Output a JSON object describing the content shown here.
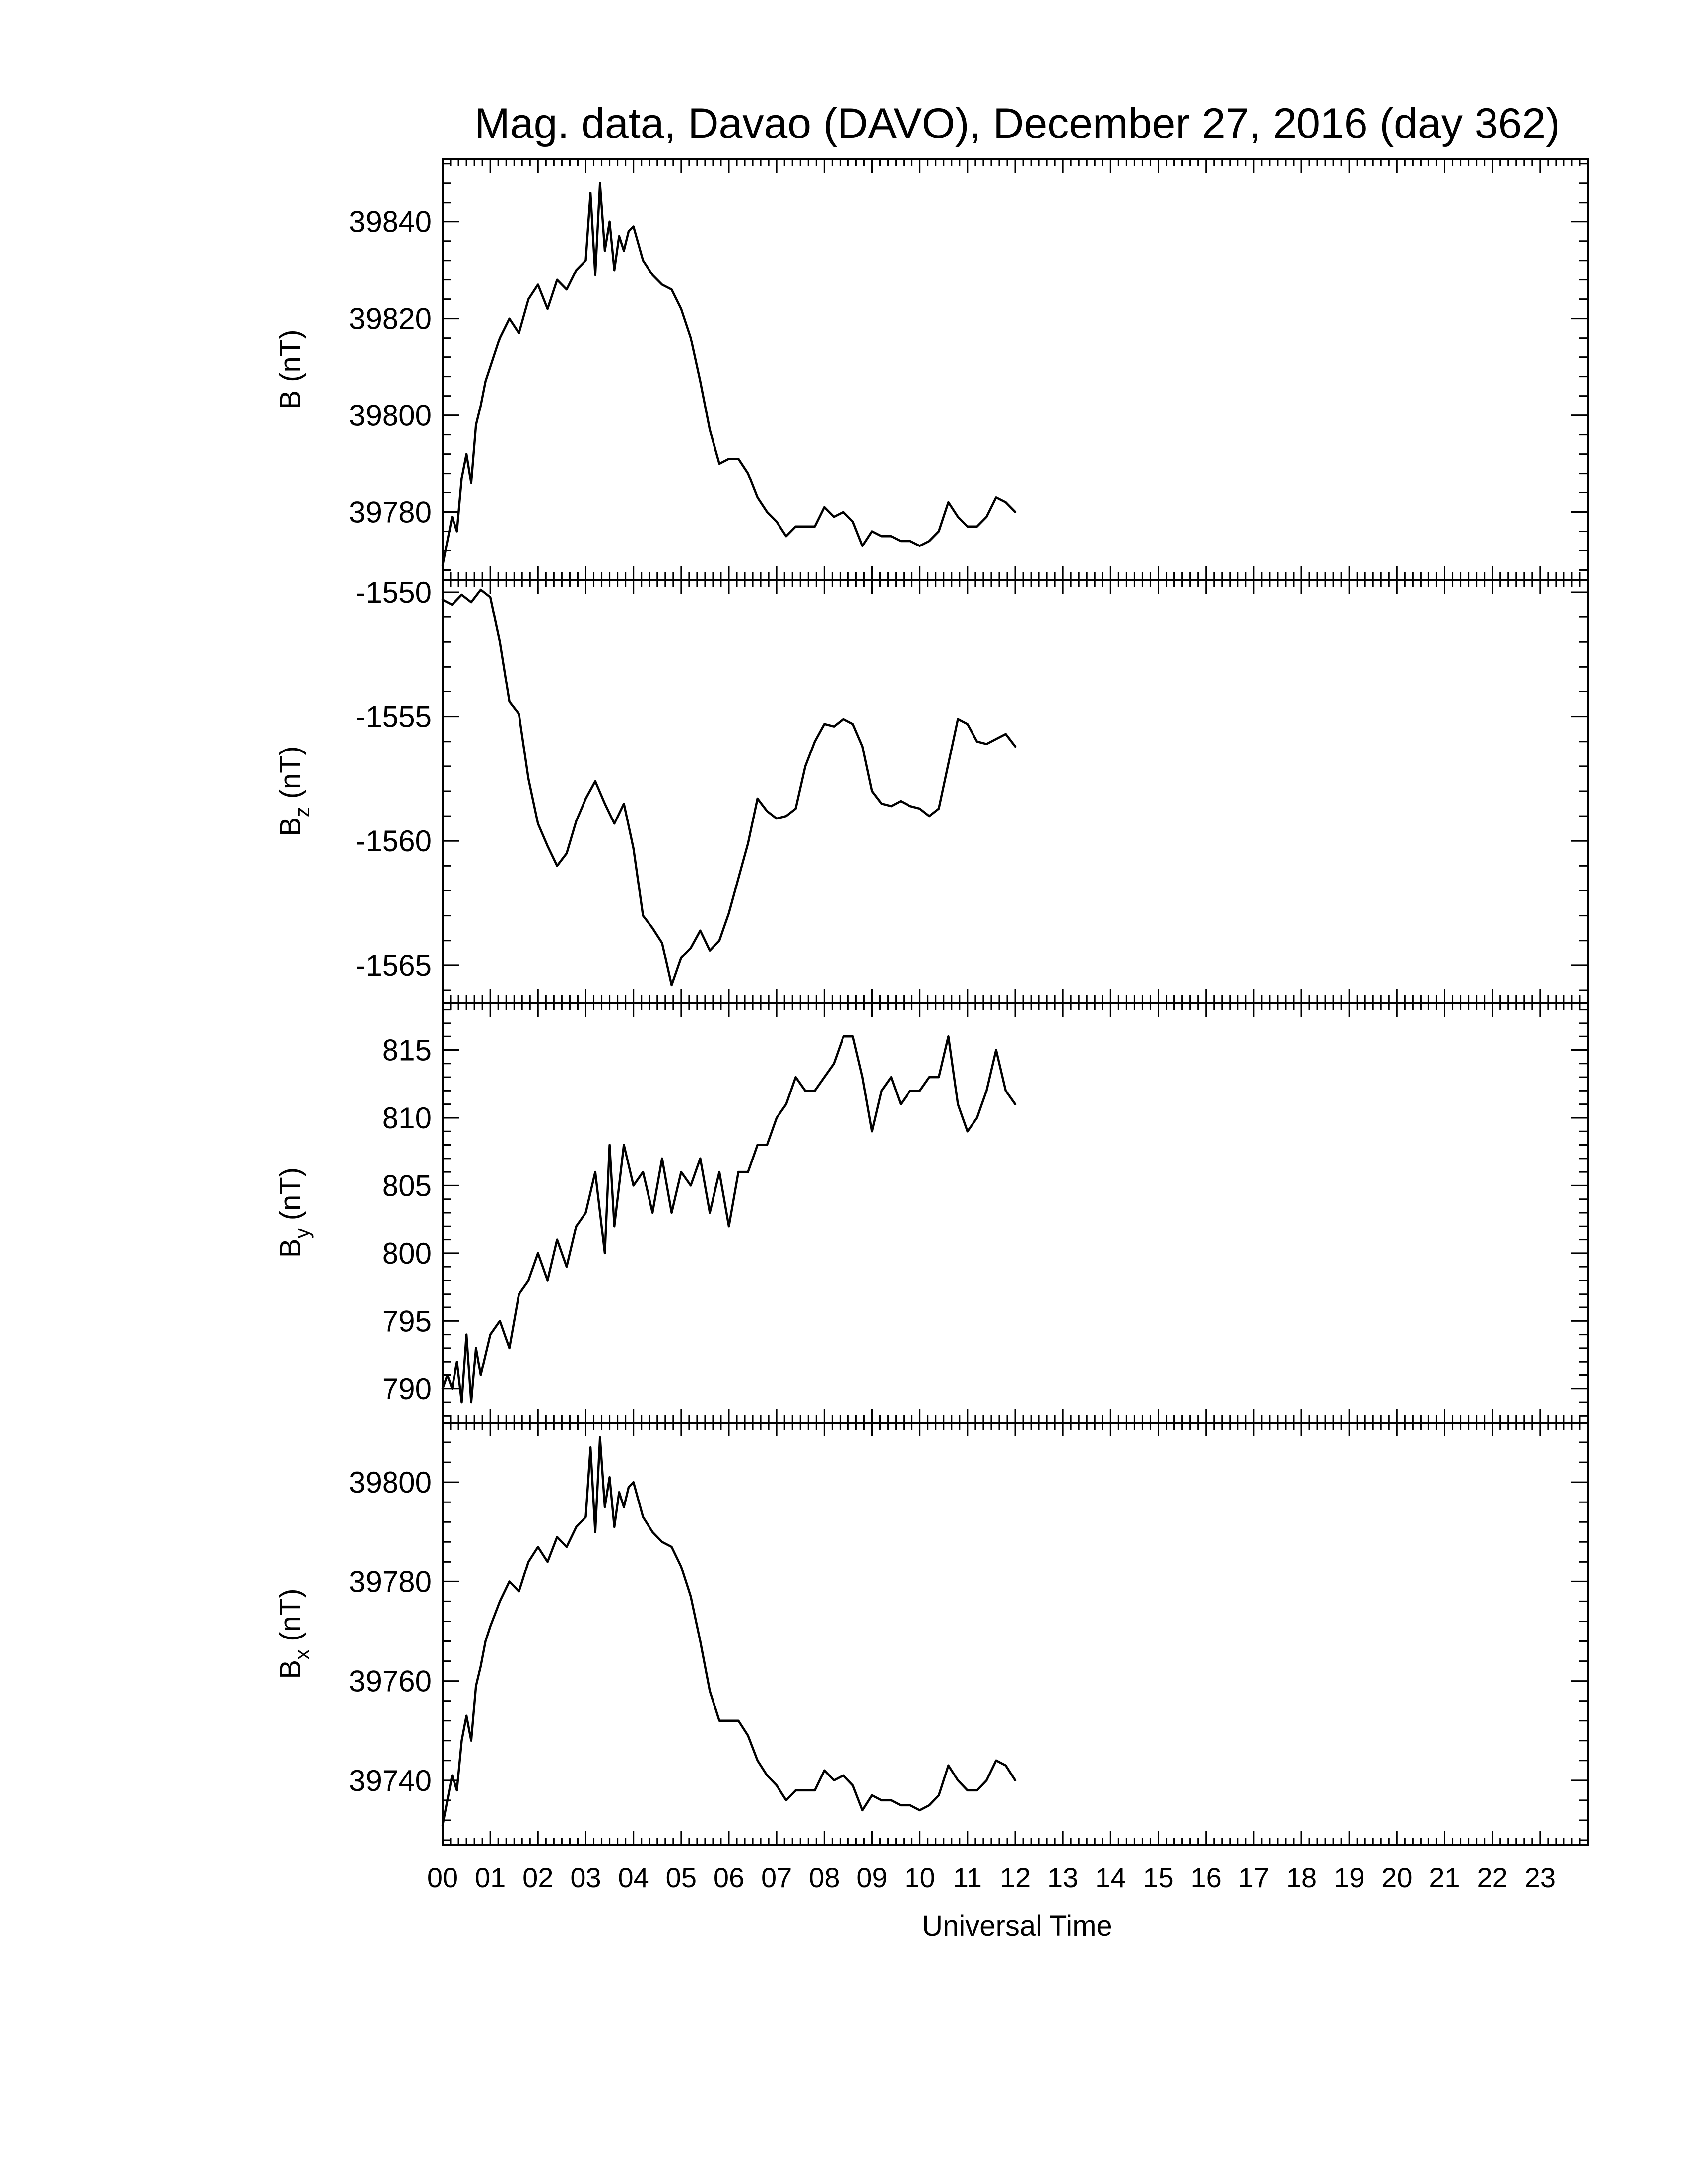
{
  "chart_data": {
    "type": "line",
    "title": "Mag. data, Davao (DAVO), December 27, 2016 (day 362)",
    "xlabel": "Universal Time",
    "x_tick_labels": [
      "00",
      "01",
      "02",
      "03",
      "04",
      "05",
      "06",
      "07",
      "08",
      "09",
      "10",
      "11",
      "12",
      "13",
      "14",
      "15",
      "16",
      "17",
      "18",
      "19",
      "20",
      "21",
      "22",
      "23"
    ],
    "xlim_hours": [
      0,
      24
    ],
    "panels": [
      {
        "id": "B",
        "ylabel_main": "B",
        "ylabel_sub": "",
        "ylabel_unit": " (nT)",
        "ylim": [
          39766,
          39853
        ],
        "y_ticks": [
          39780,
          39800,
          39820,
          39840
        ],
        "series": {
          "x": [
            0.0,
            0.1,
            0.2,
            0.3,
            0.4,
            0.5,
            0.6,
            0.7,
            0.8,
            0.9,
            1.0,
            1.2,
            1.4,
            1.6,
            1.8,
            2.0,
            2.2,
            2.4,
            2.6,
            2.8,
            3.0,
            3.1,
            3.2,
            3.3,
            3.4,
            3.5,
            3.6,
            3.7,
            3.8,
            3.9,
            4.0,
            4.2,
            4.4,
            4.6,
            4.8,
            5.0,
            5.2,
            5.4,
            5.6,
            5.8,
            6.0,
            6.2,
            6.4,
            6.6,
            6.8,
            7.0,
            7.2,
            7.4,
            7.6,
            7.8,
            8.0,
            8.2,
            8.4,
            8.6,
            8.8,
            9.0,
            9.2,
            9.4,
            9.6,
            9.8,
            10.0,
            10.2,
            10.4,
            10.6,
            10.8,
            11.0,
            11.2,
            11.4,
            11.6,
            11.8,
            12.0
          ],
          "y": [
            39769,
            39774,
            39779,
            39776,
            39787,
            39792,
            39786,
            39798,
            39802,
            39807,
            39810,
            39816,
            39820,
            39817,
            39824,
            39827,
            39822,
            39828,
            39826,
            39830,
            39832,
            39846,
            39829,
            39848,
            39834,
            39840,
            39830,
            39837,
            39834,
            39838,
            39839,
            39832,
            39829,
            39827,
            39826,
            39822,
            39816,
            39807,
            39797,
            39790,
            39791,
            39791,
            39788,
            39783,
            39780,
            39778,
            39775,
            39777,
            39777,
            39777,
            39781,
            39779,
            39780,
            39778,
            39773,
            39776,
            39775,
            39775,
            39774,
            39774,
            39773,
            39774,
            39776,
            39782,
            39779,
            39777,
            39777,
            39779,
            39783,
            39782,
            39780
          ]
        }
      },
      {
        "id": "Bz",
        "ylabel_main": "B",
        "ylabel_sub": "z",
        "ylabel_unit": " (nT)",
        "ylim": [
          -1566.5,
          -1549.5
        ],
        "y_ticks": [
          -1550,
          -1555,
          -1560,
          -1565
        ],
        "series": {
          "x": [
            0.0,
            0.2,
            0.4,
            0.6,
            0.8,
            1.0,
            1.2,
            1.4,
            1.6,
            1.8,
            2.0,
            2.2,
            2.4,
            2.6,
            2.8,
            3.0,
            3.2,
            3.4,
            3.6,
            3.8,
            4.0,
            4.2,
            4.4,
            4.6,
            4.8,
            5.0,
            5.2,
            5.4,
            5.6,
            5.8,
            6.0,
            6.2,
            6.4,
            6.6,
            6.8,
            7.0,
            7.2,
            7.4,
            7.6,
            7.8,
            8.0,
            8.2,
            8.4,
            8.6,
            8.8,
            9.0,
            9.2,
            9.4,
            9.6,
            9.8,
            10.0,
            10.2,
            10.4,
            10.6,
            10.8,
            11.0,
            11.2,
            11.4,
            11.6,
            11.8,
            12.0
          ],
          "y": [
            -1550.3,
            -1550.5,
            -1550.1,
            -1550.4,
            -1549.9,
            -1550.2,
            -1552.0,
            -1554.4,
            -1554.9,
            -1557.5,
            -1559.3,
            -1560.2,
            -1561.0,
            -1560.5,
            -1559.2,
            -1558.3,
            -1557.6,
            -1558.5,
            -1559.3,
            -1558.5,
            -1560.3,
            -1563.0,
            -1563.5,
            -1564.1,
            -1565.8,
            -1564.7,
            -1564.3,
            -1563.6,
            -1564.4,
            -1564.0,
            -1562.9,
            -1561.5,
            -1560.1,
            -1558.3,
            -1558.8,
            -1559.1,
            -1559.0,
            -1558.7,
            -1557.0,
            -1556.0,
            -1555.3,
            -1555.4,
            -1555.1,
            -1555.3,
            -1556.2,
            -1558.0,
            -1558.5,
            -1558.6,
            -1558.4,
            -1558.6,
            -1558.7,
            -1559.0,
            -1558.7,
            -1556.9,
            -1555.1,
            -1555.3,
            -1556.0,
            -1556.1,
            -1555.9,
            -1555.7,
            -1556.2
          ]
        }
      },
      {
        "id": "By",
        "ylabel_main": "B",
        "ylabel_sub": "y",
        "ylabel_unit": " (nT)",
        "ylim": [
          787.5,
          818.5
        ],
        "y_ticks": [
          790,
          795,
          800,
          805,
          810,
          815
        ],
        "series": {
          "x": [
            0.0,
            0.1,
            0.2,
            0.3,
            0.4,
            0.5,
            0.6,
            0.7,
            0.8,
            1.0,
            1.2,
            1.4,
            1.6,
            1.8,
            2.0,
            2.2,
            2.4,
            2.6,
            2.8,
            3.0,
            3.2,
            3.4,
            3.5,
            3.6,
            3.8,
            4.0,
            4.2,
            4.4,
            4.6,
            4.8,
            5.0,
            5.2,
            5.4,
            5.6,
            5.8,
            6.0,
            6.2,
            6.4,
            6.6,
            6.8,
            7.0,
            7.2,
            7.4,
            7.6,
            7.8,
            8.0,
            8.2,
            8.4,
            8.6,
            8.8,
            9.0,
            9.2,
            9.4,
            9.6,
            9.8,
            10.0,
            10.2,
            10.4,
            10.6,
            10.8,
            11.0,
            11.2,
            11.4,
            11.6,
            11.8,
            12.0
          ],
          "y": [
            790,
            791,
            790,
            792,
            789,
            794,
            789,
            793,
            791,
            794,
            795,
            793,
            797,
            798,
            800,
            798,
            801,
            799,
            802,
            803,
            806,
            800,
            808,
            802,
            808,
            805,
            806,
            803,
            807,
            803,
            806,
            805,
            807,
            803,
            806,
            802,
            806,
            806,
            808,
            808,
            810,
            811,
            813,
            812,
            812,
            813,
            814,
            816,
            816,
            813,
            809,
            812,
            813,
            811,
            812,
            812,
            813,
            813,
            816,
            811,
            809,
            810,
            812,
            815,
            812,
            811
          ]
        }
      },
      {
        "id": "Bx",
        "ylabel_main": "B",
        "ylabel_sub": "x",
        "ylabel_unit": " (nT)",
        "ylim": [
          39727,
          39812
        ],
        "y_ticks": [
          39740,
          39760,
          39780,
          39800
        ],
        "series": {
          "x": [
            0.0,
            0.1,
            0.2,
            0.3,
            0.4,
            0.5,
            0.6,
            0.7,
            0.8,
            0.9,
            1.0,
            1.2,
            1.4,
            1.6,
            1.8,
            2.0,
            2.2,
            2.4,
            2.6,
            2.8,
            3.0,
            3.1,
            3.2,
            3.3,
            3.4,
            3.5,
            3.6,
            3.7,
            3.8,
            3.9,
            4.0,
            4.2,
            4.4,
            4.6,
            4.8,
            5.0,
            5.2,
            5.4,
            5.6,
            5.8,
            6.0,
            6.2,
            6.4,
            6.6,
            6.8,
            7.0,
            7.2,
            7.4,
            7.6,
            7.8,
            8.0,
            8.2,
            8.4,
            8.6,
            8.8,
            9.0,
            9.2,
            9.4,
            9.6,
            9.8,
            10.0,
            10.2,
            10.4,
            10.6,
            10.8,
            11.0,
            11.2,
            11.4,
            11.6,
            11.8,
            12.0
          ],
          "y": [
            39731,
            39736,
            39741,
            39738,
            39748,
            39753,
            39748,
            39759,
            39763,
            39768,
            39771,
            39776,
            39780,
            39778,
            39784,
            39787,
            39784,
            39789,
            39787,
            39791,
            39793,
            39807,
            39790,
            39809,
            39795,
            39801,
            39791,
            39798,
            39795,
            39799,
            39800,
            39793,
            39790,
            39788,
            39787,
            39783,
            39777,
            39768,
            39758,
            39752,
            39752,
            39752,
            39749,
            39744,
            39741,
            39739,
            39736,
            39738,
            39738,
            39738,
            39742,
            39740,
            39741,
            39739,
            39734,
            39737,
            39736,
            39736,
            39735,
            39735,
            39734,
            39735,
            39737,
            39743,
            39740,
            39738,
            39738,
            39740,
            39744,
            39743,
            39740
          ]
        }
      }
    ]
  }
}
